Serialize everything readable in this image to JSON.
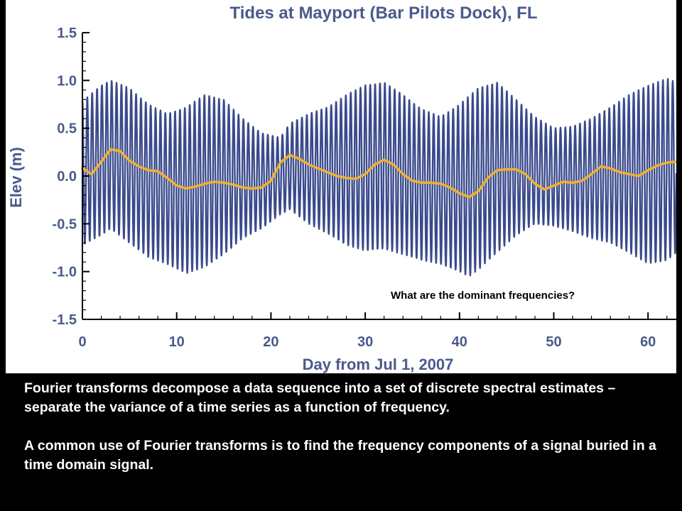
{
  "chart_data": {
    "type": "line",
    "title": "Tides at Mayport (Bar Pilots Dock), FL",
    "xlabel": "Day from Jul 1, 2007",
    "ylabel": "Elev (m)",
    "xlim": [
      0,
      63
    ],
    "ylim": [
      -1.5,
      1.5
    ],
    "x_ticks": [
      0,
      10,
      20,
      30,
      40,
      50,
      60
    ],
    "y_ticks": [
      1.5,
      1.0,
      0.5,
      0.0,
      -0.5,
      -1.0,
      -1.5
    ],
    "y_tick_labels": [
      "1.5",
      "1.0",
      "0.5",
      "0.0",
      "-0.5",
      "-1.0",
      "-1.5"
    ],
    "annotation": "What are the dominant frequencies?",
    "grid": false,
    "series": [
      {
        "kind": "tide",
        "color": "#3a4a8c",
        "period_days": 0.5175,
        "upper_envelope": {
          "x": [
            0,
            2,
            3,
            5,
            7,
            9,
            11,
            13,
            15,
            17,
            19,
            21,
            22,
            24,
            26,
            28,
            30,
            32,
            34,
            36,
            38,
            40,
            42,
            44,
            46,
            48,
            50,
            52,
            54,
            56,
            58,
            60,
            62,
            63
          ],
          "y": [
            0.78,
            0.95,
            1.0,
            0.92,
            0.75,
            0.65,
            0.72,
            0.85,
            0.8,
            0.6,
            0.45,
            0.4,
            0.55,
            0.65,
            0.72,
            0.85,
            0.95,
            0.98,
            0.85,
            0.7,
            0.62,
            0.75,
            0.92,
            0.98,
            0.8,
            0.62,
            0.5,
            0.52,
            0.6,
            0.72,
            0.85,
            0.95,
            1.02,
            0.98
          ]
        },
        "lower_envelope": {
          "x": [
            0,
            2,
            3,
            5,
            7,
            9,
            11,
            13,
            15,
            17,
            19,
            21,
            22,
            24,
            26,
            28,
            30,
            32,
            34,
            36,
            38,
            40,
            41,
            42,
            44,
            46,
            48,
            50,
            52,
            54,
            56,
            58,
            60,
            62,
            63
          ],
          "y": [
            -0.72,
            -0.62,
            -0.55,
            -0.7,
            -0.85,
            -0.92,
            -1.02,
            -0.95,
            -0.82,
            -0.65,
            -0.55,
            -0.4,
            -0.35,
            -0.5,
            -0.6,
            -0.72,
            -0.78,
            -0.76,
            -0.82,
            -0.88,
            -0.92,
            -1.0,
            -1.05,
            -0.98,
            -0.8,
            -0.62,
            -0.5,
            -0.52,
            -0.58,
            -0.65,
            -0.7,
            -0.8,
            -0.92,
            -0.88,
            -0.8
          ]
        }
      },
      {
        "kind": "smooth",
        "color": "#f0b030",
        "x": [
          0,
          1,
          2,
          3,
          4,
          5,
          6,
          7,
          8,
          9,
          10,
          11,
          12,
          13,
          14,
          15,
          16,
          17,
          18,
          19,
          20,
          21,
          22,
          23,
          24,
          25,
          26,
          27,
          28,
          29,
          30,
          31,
          32,
          33,
          34,
          35,
          36,
          37,
          38,
          39,
          40,
          41,
          42,
          43,
          44,
          45,
          46,
          47,
          48,
          49,
          50,
          51,
          52,
          53,
          54,
          55,
          56,
          57,
          58,
          59,
          60,
          61,
          62,
          63
        ],
        "y": [
          0.08,
          0.02,
          0.15,
          0.28,
          0.26,
          0.16,
          0.1,
          0.06,
          0.05,
          -0.02,
          -0.1,
          -0.13,
          -0.11,
          -0.08,
          -0.06,
          -0.07,
          -0.09,
          -0.12,
          -0.13,
          -0.12,
          -0.05,
          0.14,
          0.22,
          0.18,
          0.12,
          0.08,
          0.04,
          0.0,
          -0.02,
          -0.03,
          0.02,
          0.12,
          0.17,
          0.12,
          0.02,
          -0.05,
          -0.07,
          -0.07,
          -0.08,
          -0.12,
          -0.18,
          -0.22,
          -0.16,
          -0.02,
          0.06,
          0.07,
          0.07,
          0.02,
          -0.08,
          -0.14,
          -0.1,
          -0.06,
          -0.07,
          -0.05,
          0.02,
          0.1,
          0.08,
          0.04,
          0.02,
          0.0,
          0.06,
          0.11,
          0.14,
          0.15
        ]
      }
    ]
  },
  "text": {
    "paragraph1": "Fourier transforms decompose a data sequence into a set of discrete spectral estimates – separate the variance of a time series as a function of frequency.",
    "paragraph2": "A common use of Fourier transforms is to find the frequency components of a signal buried in a time domain signal."
  },
  "colors": {
    "background": "#000000",
    "chart_background": "#ffffff",
    "axis_label": "#4a5a8c",
    "tide_line": "#3a4a8c",
    "smooth_line": "#f0b030",
    "body_text": "#ffffff"
  }
}
